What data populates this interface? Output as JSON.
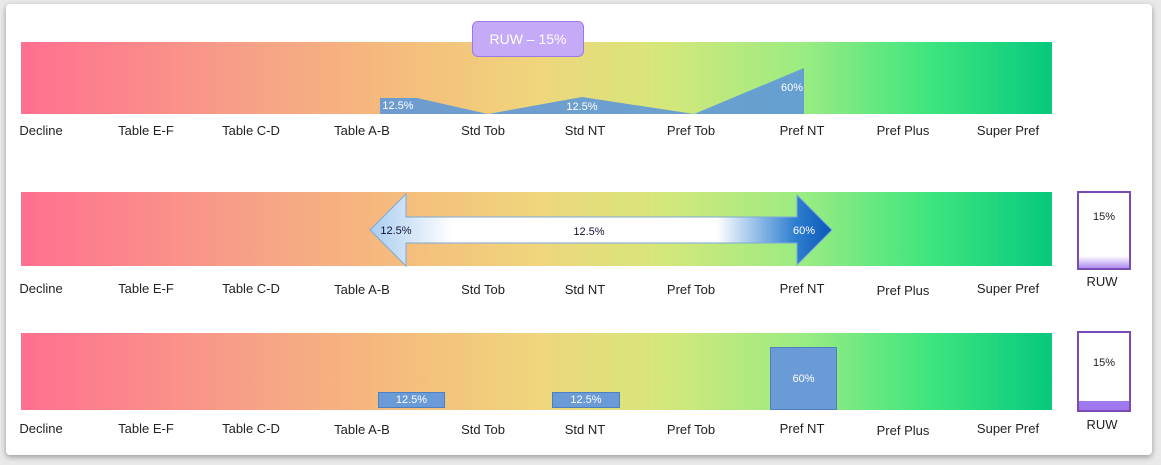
{
  "categories": [
    "Decline",
    "Table E-F",
    "Table C-D",
    "Table A-B",
    "Std Tob",
    "Std NT",
    "Pref Tob",
    "Pref NT",
    "Pref Plus",
    "Super Pref"
  ],
  "panel1": {
    "pill_label": "RUW – 15%",
    "values": [
      "12.5%",
      "12.5%",
      "60%"
    ]
  },
  "panel2": {
    "arrow_start_label": "12.5%",
    "arrow_mid_label": "12.5%",
    "arrow_end_label": "60%",
    "ruw_value": "15%",
    "ruw_label": "RUW"
  },
  "panel3": {
    "box_values": [
      "12.5%",
      "12.5%",
      "60%"
    ],
    "ruw_value": "15%",
    "ruw_label": "RUW"
  },
  "colors": {
    "gradient_start": "#ff6f8f",
    "gradient_end": "#06c97d",
    "accent_blue": "#6a9bd6",
    "ruw_purple": "#7a4bb7",
    "pill_purple": "#c4aaf7"
  }
}
